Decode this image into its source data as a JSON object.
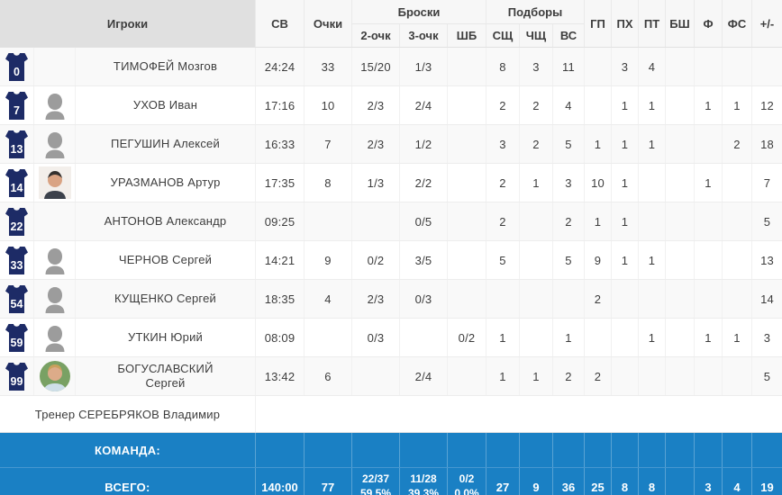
{
  "table": {
    "header": {
      "players": "Игроки",
      "time": "СВ",
      "points": "Очки",
      "shots_group": "Броски",
      "p2": "2-очк",
      "p3": "3-очк",
      "ft": "ШБ",
      "rebounds_group": "Подборы",
      "reb_off": "СЩ",
      "reb_def": "ЧЩ",
      "reb_tot": "ВС",
      "assists": "ГП",
      "steals": "ПХ",
      "turnovers": "ПТ",
      "blocks": "БШ",
      "fouls": "Ф",
      "fouls_drawn": "ФС",
      "plus_minus": "+/-"
    },
    "players": [
      {
        "number": "0",
        "avatar": "none",
        "name": "ТИМОФЕЙ Мозгов",
        "time": "24:24",
        "points": "33",
        "p2": "15/20",
        "p3": "1/3",
        "ft": "",
        "reb_off": "8",
        "reb_def": "3",
        "reb_tot": "11",
        "assists": "",
        "steals": "3",
        "turnovers": "4",
        "blocks": "",
        "fouls": "",
        "fouls_drawn": "",
        "plus_minus": ""
      },
      {
        "number": "7",
        "avatar": "silhouette",
        "name": "УХОВ Иван",
        "time": "17:16",
        "points": "10",
        "p2": "2/3",
        "p3": "2/4",
        "ft": "",
        "reb_off": "2",
        "reb_def": "2",
        "reb_tot": "4",
        "assists": "",
        "steals": "1",
        "turnovers": "1",
        "blocks": "",
        "fouls": "1",
        "fouls_drawn": "1",
        "plus_minus": "12"
      },
      {
        "number": "13",
        "avatar": "silhouette",
        "name": "ПЕГУШИН Алексей",
        "time": "16:33",
        "points": "7",
        "p2": "2/3",
        "p3": "1/2",
        "ft": "",
        "reb_off": "3",
        "reb_def": "2",
        "reb_tot": "5",
        "assists": "1",
        "steals": "1",
        "turnovers": "1",
        "blocks": "",
        "fouls": "",
        "fouls_drawn": "2",
        "plus_minus": "18"
      },
      {
        "number": "14",
        "avatar": "photo",
        "name": "УРАЗМАНОВ Артур",
        "time": "17:35",
        "points": "8",
        "p2": "1/3",
        "p3": "2/2",
        "ft": "",
        "reb_off": "2",
        "reb_def": "1",
        "reb_tot": "3",
        "assists": "10",
        "steals": "1",
        "turnovers": "",
        "blocks": "",
        "fouls": "1",
        "fouls_drawn": "",
        "plus_minus": "7"
      },
      {
        "number": "22",
        "avatar": "none",
        "name": "АНТОНОВ Александр",
        "time": "09:25",
        "points": "",
        "p2": "",
        "p3": "0/5",
        "ft": "",
        "reb_off": "2",
        "reb_def": "",
        "reb_tot": "2",
        "assists": "1",
        "steals": "1",
        "turnovers": "",
        "blocks": "",
        "fouls": "",
        "fouls_drawn": "",
        "plus_minus": "5"
      },
      {
        "number": "33",
        "avatar": "silhouette",
        "name": "ЧЕРНОВ Сергей",
        "time": "14:21",
        "points": "9",
        "p2": "0/2",
        "p3": "3/5",
        "ft": "",
        "reb_off": "5",
        "reb_def": "",
        "reb_tot": "5",
        "assists": "9",
        "steals": "1",
        "turnovers": "1",
        "blocks": "",
        "fouls": "",
        "fouls_drawn": "",
        "plus_minus": "13"
      },
      {
        "number": "54",
        "avatar": "silhouette",
        "name": "КУЩЕНКО Сергей",
        "time": "18:35",
        "points": "4",
        "p2": "2/3",
        "p3": "0/3",
        "ft": "",
        "reb_off": "",
        "reb_def": "",
        "reb_tot": "",
        "assists": "2",
        "steals": "",
        "turnovers": "",
        "blocks": "",
        "fouls": "",
        "fouls_drawn": "",
        "plus_minus": "14"
      },
      {
        "number": "59",
        "avatar": "silhouette",
        "name": "УТКИН Юрий",
        "time": "08:09",
        "points": "",
        "p2": "0/3",
        "p3": "",
        "ft": "0/2",
        "reb_off": "1",
        "reb_def": "",
        "reb_tot": "1",
        "assists": "",
        "steals": "",
        "turnovers": "1",
        "blocks": "",
        "fouls": "1",
        "fouls_drawn": "1",
        "plus_minus": "3"
      },
      {
        "number": "99",
        "avatar": "photo_circle",
        "name": "БОГУСЛАВСКИЙ Сергей",
        "time": "13:42",
        "points": "6",
        "p2": "",
        "p3": "2/4",
        "ft": "",
        "reb_off": "1",
        "reb_def": "1",
        "reb_tot": "2",
        "assists": "2",
        "steals": "",
        "turnovers": "",
        "blocks": "",
        "fouls": "",
        "fouls_drawn": "",
        "plus_minus": "5"
      }
    ],
    "coach_label": "Тренер СЕРЕБРЯКОВ Владимир",
    "team_label": "КОМАНДА:",
    "total": {
      "label": "ВСЕГО:",
      "time": "140:00",
      "points": "77",
      "p2_frac": "22/37",
      "p2_pct": "59.5%",
      "p3_frac": "11/28",
      "p3_pct": "39.3%",
      "ft_frac": "0/2",
      "ft_pct": "0.0%",
      "reb_off": "27",
      "reb_def": "9",
      "reb_tot": "36",
      "assists": "25",
      "steals": "8",
      "turnovers": "8",
      "blocks": "",
      "fouls": "3",
      "fouls_drawn": "4",
      "plus_minus": "19"
    }
  },
  "colors": {
    "accent_blue": "#1a80c4",
    "jersey_navy": "#1d2b66",
    "header_gray": "#e0e0e0",
    "avatar_gray": "#9c9c9c"
  }
}
